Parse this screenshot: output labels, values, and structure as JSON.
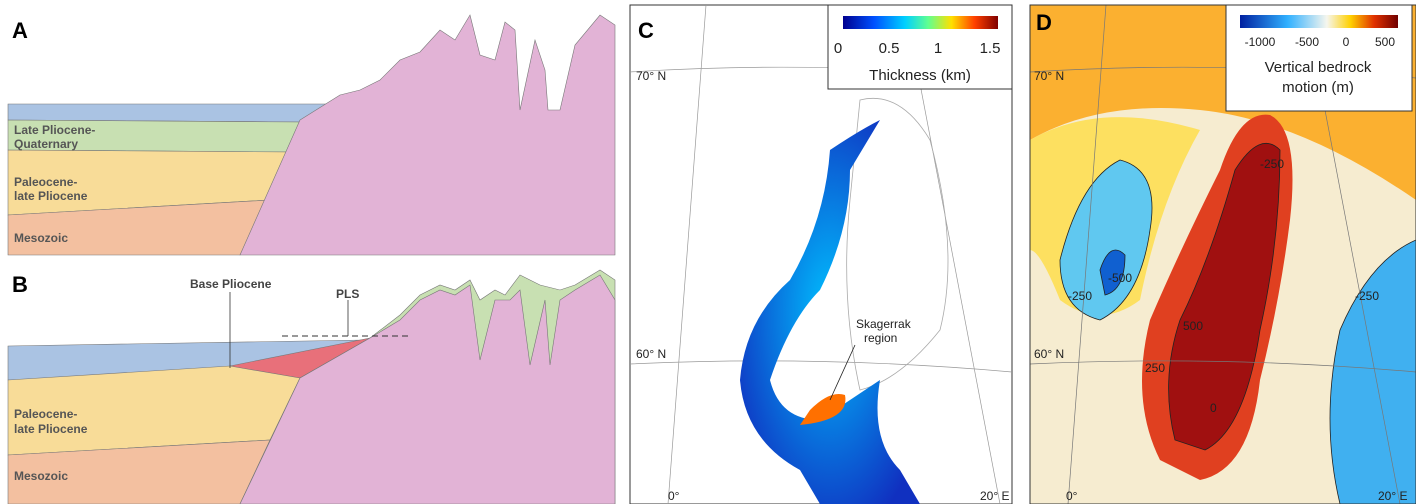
{
  "panel_a": {
    "letter": "A",
    "layers": [
      "Late Pliocene-",
      "Quaternary",
      "Paleocene-",
      "late Pliocene",
      "Mesozoic"
    ]
  },
  "panel_b": {
    "letter": "B",
    "annotations": [
      "Base Pliocene",
      "PLS"
    ],
    "layers": [
      "Paleocene-",
      "late Pliocene",
      "Mesozoic"
    ]
  },
  "panel_c": {
    "letter": "C",
    "colorbar": {
      "ticks": [
        "0",
        "0.5",
        "1",
        "1.5"
      ],
      "title": "Thickness (km)"
    },
    "latitudes": [
      "70° N",
      "60° N"
    ],
    "longitudes": [
      "0°",
      "20° E"
    ],
    "annotation": [
      "Skagerrak",
      "region"
    ]
  },
  "panel_d": {
    "letter": "D",
    "colorbar": {
      "ticks": [
        "-1000",
        "-500",
        "0",
        "500"
      ],
      "title": [
        "Vertical bedrock",
        "motion (m)"
      ]
    },
    "latitudes": [
      "70° N",
      "60° N"
    ],
    "longitudes": [
      "0°",
      "20° E"
    ],
    "contour_labels": [
      "-250",
      "-500",
      "-250",
      "500",
      "250",
      "-250",
      "0"
    ]
  }
}
